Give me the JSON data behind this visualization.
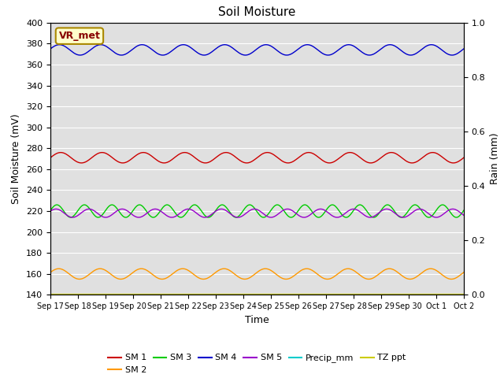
{
  "title": "Soil Moisture",
  "xlabel": "Time",
  "ylabel_left": "Soil Moisture (mV)",
  "ylabel_right": "Rain (mm)",
  "ylim_left": [
    140,
    400
  ],
  "ylim_right": [
    0.0,
    1.0
  ],
  "yticks_left": [
    140,
    160,
    180,
    200,
    220,
    240,
    260,
    280,
    300,
    320,
    340,
    360,
    380,
    400
  ],
  "yticks_right": [
    0.0,
    0.2,
    0.4,
    0.6,
    0.8,
    1.0
  ],
  "x_tick_labels": [
    "Sep 17",
    "Sep 18",
    "Sep 19",
    "Sep 20",
    "Sep 21",
    "Sep 22",
    "Sep 23",
    "Sep 24",
    "Sep 25",
    "Sep 26",
    "Sep 27",
    "Sep 28",
    "Sep 29",
    "Sep 30",
    "Oct 1",
    "Oct 2"
  ],
  "bg_color": "#e0e0e0",
  "annotation_text": "VR_met",
  "annotation_bg": "#ffffcc",
  "annotation_border": "#aa8800",
  "annotation_text_color": "#880000",
  "series": {
    "SM1": {
      "color": "#cc0000",
      "base": 271,
      "amp": 5,
      "period": 1.5,
      "phase": 0.0
    },
    "SM2": {
      "color": "#ff9900",
      "base": 160,
      "amp": 5,
      "period": 1.5,
      "phase": 0.3
    },
    "SM3": {
      "color": "#00cc00",
      "base": 220,
      "amp": 6,
      "period": 1.0,
      "phase": 0.1
    },
    "SM4": {
      "color": "#0000cc",
      "base": 374,
      "amp": 5,
      "period": 1.5,
      "phase": 0.2
    },
    "SM5": {
      "color": "#9900cc",
      "base": 218,
      "amp": 4,
      "period": 1.2,
      "phase": 0.5
    },
    "Precip_mm": {
      "color": "#00cccc",
      "base": 140,
      "amp": 0,
      "period": 1.0,
      "phase": 0.0
    },
    "TZ_ppt": {
      "color": "#cccc00",
      "base": 140,
      "amp": 0,
      "period": 1.0,
      "phase": 0.0
    }
  },
  "legend_entries": [
    {
      "label": "SM 1",
      "color": "#cc0000"
    },
    {
      "label": "SM 2",
      "color": "#ff9900"
    },
    {
      "label": "SM 3",
      "color": "#00cc00"
    },
    {
      "label": "SM 4",
      "color": "#0000cc"
    },
    {
      "label": "SM 5",
      "color": "#9900cc"
    },
    {
      "label": "Precip_mm",
      "color": "#00cccc"
    },
    {
      "label": "TZ ppt",
      "color": "#cccc00"
    }
  ]
}
